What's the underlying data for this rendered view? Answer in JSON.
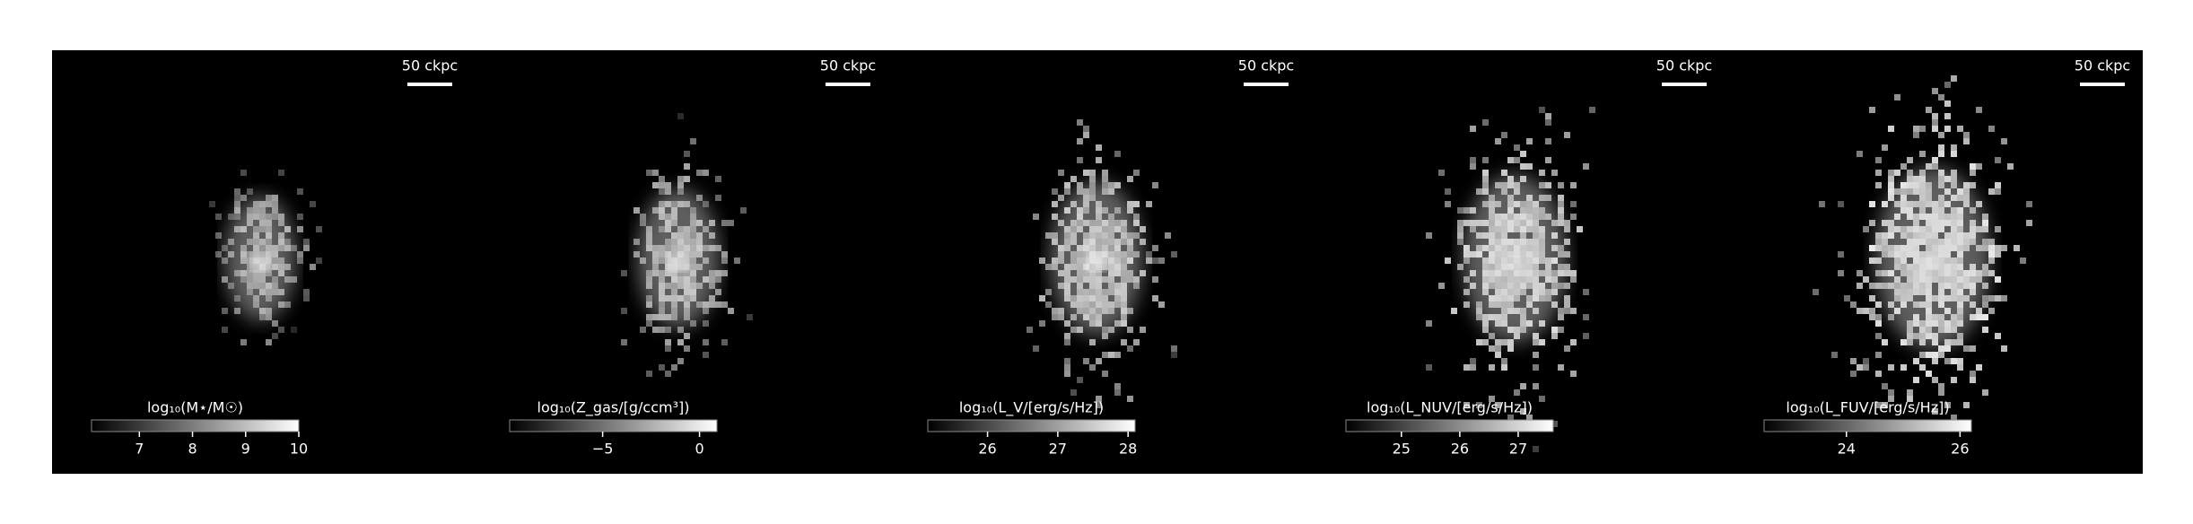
{
  "chart_data": [
    {
      "type": "image",
      "scale_label": "50 ckpc",
      "colorbar_label": "log₁₀(M⋆/M☉)",
      "clim": [
        6.1,
        10.0
      ],
      "ticks": [
        7,
        8,
        9,
        10
      ]
    },
    {
      "type": "image",
      "scale_label": "50 ckpc",
      "colorbar_label": "log₁₀(Z_gas/[g/ccm³])",
      "clim": [
        -9.8,
        0.9
      ],
      "ticks": [
        {
          "value": -5,
          "label": "−5"
        },
        0
      ]
    },
    {
      "type": "image",
      "scale_label": "50 ckpc",
      "colorbar_label": "log₁₀(L_V/[erg/s/Hz])",
      "clim": [
        25.15,
        28.1
      ],
      "ticks": [
        26,
        27,
        28
      ]
    },
    {
      "type": "image",
      "scale_label": "50 ckpc",
      "colorbar_label": "log₁₀(L_NUV/[erg/s/Hz])",
      "clim": [
        24.05,
        27.6
      ],
      "ticks": [
        25,
        26,
        27
      ]
    },
    {
      "type": "image",
      "scale_label": "50 ckpc",
      "colorbar_label": "log₁₀(L_FUV/[erg/s/Hz])",
      "clim": [
        22.55,
        26.2
      ],
      "ticks": [
        24,
        26
      ]
    }
  ]
}
